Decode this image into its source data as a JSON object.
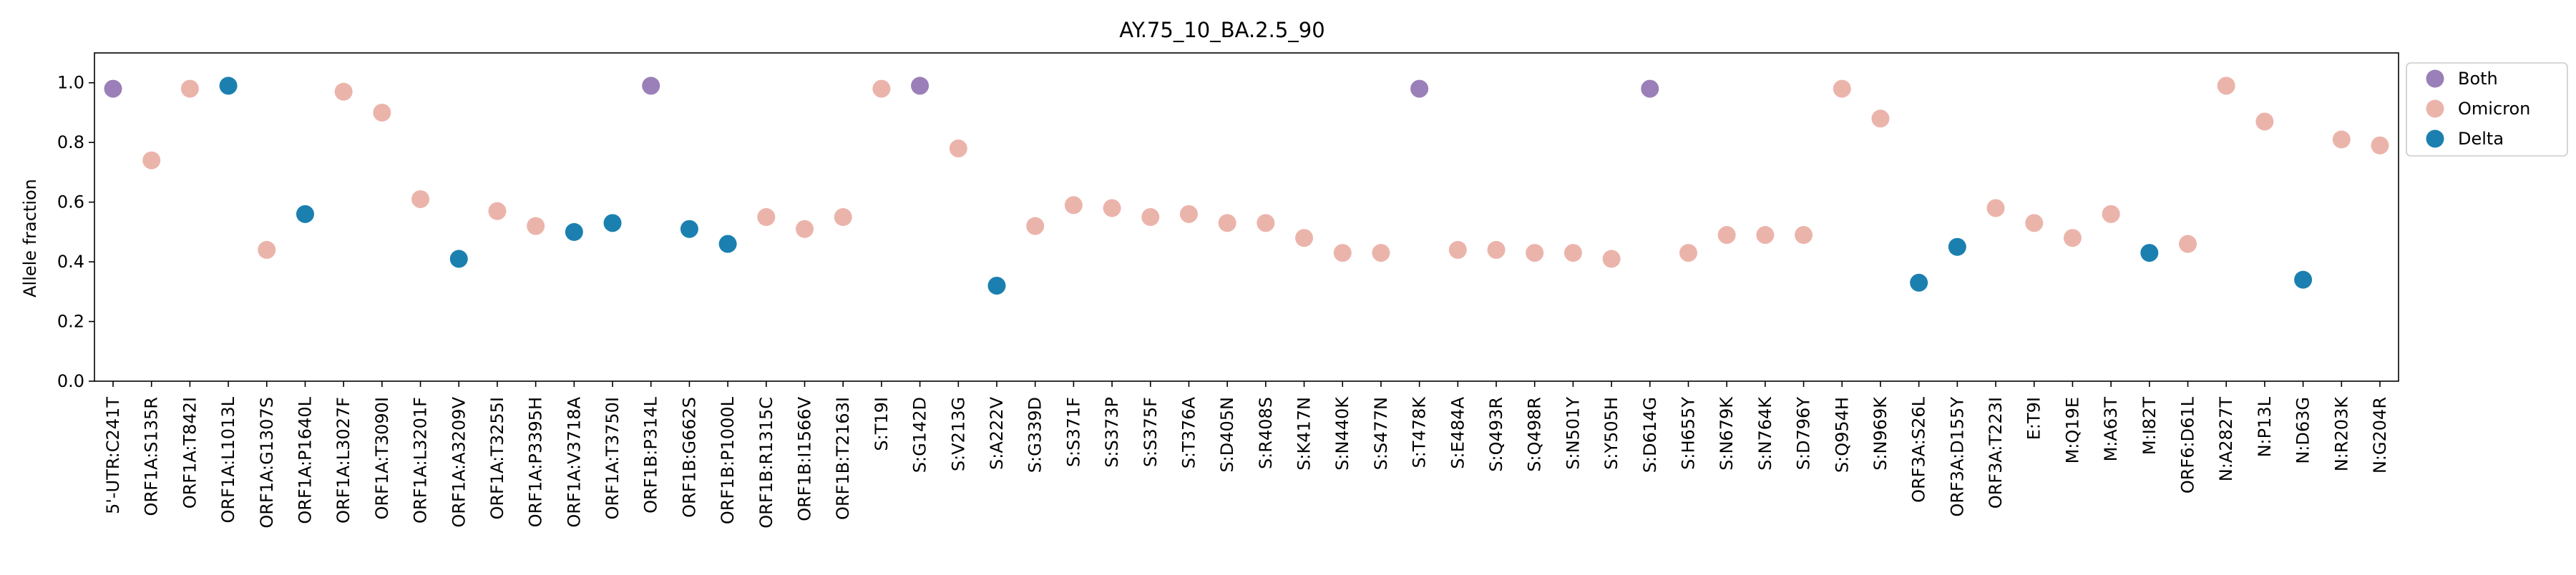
{
  "chart_data": {
    "type": "scatter",
    "title": "AY.75_10_BA.2.5_90",
    "xlabel": "",
    "ylabel": "Allele fraction",
    "ylim": [
      0,
      1.1
    ],
    "yticks": [
      "0.0",
      "0.2",
      "0.4",
      "0.6",
      "0.8",
      "1.0"
    ],
    "grid": false,
    "legend_position": "upper-right-outside",
    "colors": {
      "Both": "#9b7fb8",
      "Omicron": "#ebb4ab",
      "Delta": "#1b80b0"
    },
    "series": [
      {
        "name": "Both",
        "color": "#9b7fb8"
      },
      {
        "name": "Omicron",
        "color": "#ebb4ab"
      },
      {
        "name": "Delta",
        "color": "#1b80b0"
      }
    ],
    "points": [
      {
        "x": "5'-UTR:C241T",
        "y": 0.98,
        "group": "Both"
      },
      {
        "x": "ORF1A:S135R",
        "y": 0.74,
        "group": "Omicron"
      },
      {
        "x": "ORF1A:T842I",
        "y": 0.98,
        "group": "Omicron"
      },
      {
        "x": "ORF1A:L1013L",
        "y": 0.99,
        "group": "Delta"
      },
      {
        "x": "ORF1A:G1307S",
        "y": 0.44,
        "group": "Omicron"
      },
      {
        "x": "ORF1A:P1640L",
        "y": 0.56,
        "group": "Delta"
      },
      {
        "x": "ORF1A:L3027F",
        "y": 0.97,
        "group": "Omicron"
      },
      {
        "x": "ORF1A:T3090I",
        "y": 0.9,
        "group": "Omicron"
      },
      {
        "x": "ORF1A:L3201F",
        "y": 0.61,
        "group": "Omicron"
      },
      {
        "x": "ORF1A:A3209V",
        "y": 0.41,
        "group": "Delta"
      },
      {
        "x": "ORF1A:T3255I",
        "y": 0.57,
        "group": "Omicron"
      },
      {
        "x": "ORF1A:P3395H",
        "y": 0.52,
        "group": "Omicron"
      },
      {
        "x": "ORF1A:V3718A",
        "y": 0.5,
        "group": "Delta"
      },
      {
        "x": "ORF1A:T3750I",
        "y": 0.53,
        "group": "Delta"
      },
      {
        "x": "ORF1B:P314L",
        "y": 0.99,
        "group": "Both"
      },
      {
        "x": "ORF1B:G662S",
        "y": 0.51,
        "group": "Delta"
      },
      {
        "x": "ORF1B:P1000L",
        "y": 0.46,
        "group": "Delta"
      },
      {
        "x": "ORF1B:R1315C",
        "y": 0.55,
        "group": "Omicron"
      },
      {
        "x": "ORF1B:I1566V",
        "y": 0.51,
        "group": "Omicron"
      },
      {
        "x": "ORF1B:T2163I",
        "y": 0.55,
        "group": "Omicron"
      },
      {
        "x": "S:T19I",
        "y": 0.98,
        "group": "Omicron"
      },
      {
        "x": "S:G142D",
        "y": 0.99,
        "group": "Both"
      },
      {
        "x": "S:V213G",
        "y": 0.78,
        "group": "Omicron"
      },
      {
        "x": "S:A222V",
        "y": 0.32,
        "group": "Delta"
      },
      {
        "x": "S:G339D",
        "y": 0.52,
        "group": "Omicron"
      },
      {
        "x": "S:S371F",
        "y": 0.59,
        "group": "Omicron"
      },
      {
        "x": "S:S373P",
        "y": 0.58,
        "group": "Omicron"
      },
      {
        "x": "S:S375F",
        "y": 0.55,
        "group": "Omicron"
      },
      {
        "x": "S:T376A",
        "y": 0.56,
        "group": "Omicron"
      },
      {
        "x": "S:D405N",
        "y": 0.53,
        "group": "Omicron"
      },
      {
        "x": "S:R408S",
        "y": 0.53,
        "group": "Omicron"
      },
      {
        "x": "S:K417N",
        "y": 0.48,
        "group": "Omicron"
      },
      {
        "x": "S:N440K",
        "y": 0.43,
        "group": "Omicron"
      },
      {
        "x": "S:S477N",
        "y": 0.43,
        "group": "Omicron"
      },
      {
        "x": "S:T478K",
        "y": 0.98,
        "group": "Both"
      },
      {
        "x": "S:E484A",
        "y": 0.44,
        "group": "Omicron"
      },
      {
        "x": "S:Q493R",
        "y": 0.44,
        "group": "Omicron"
      },
      {
        "x": "S:Q498R",
        "y": 0.43,
        "group": "Omicron"
      },
      {
        "x": "S:N501Y",
        "y": 0.43,
        "group": "Omicron"
      },
      {
        "x": "S:Y505H",
        "y": 0.41,
        "group": "Omicron"
      },
      {
        "x": "S:D614G",
        "y": 0.98,
        "group": "Both"
      },
      {
        "x": "S:H655Y",
        "y": 0.43,
        "group": "Omicron"
      },
      {
        "x": "S:N679K",
        "y": 0.49,
        "group": "Omicron"
      },
      {
        "x": "S:N764K",
        "y": 0.49,
        "group": "Omicron"
      },
      {
        "x": "S:D796Y",
        "y": 0.49,
        "group": "Omicron"
      },
      {
        "x": "S:Q954H",
        "y": 0.98,
        "group": "Omicron"
      },
      {
        "x": "S:N969K",
        "y": 0.88,
        "group": "Omicron"
      },
      {
        "x": "ORF3A:S26L",
        "y": 0.33,
        "group": "Delta"
      },
      {
        "x": "ORF3A:D155Y",
        "y": 0.45,
        "group": "Delta"
      },
      {
        "x": "ORF3A:T223I",
        "y": 0.58,
        "group": "Omicron"
      },
      {
        "x": "E:T9I",
        "y": 0.53,
        "group": "Omicron"
      },
      {
        "x": "M:Q19E",
        "y": 0.48,
        "group": "Omicron"
      },
      {
        "x": "M:A63T",
        "y": 0.56,
        "group": "Omicron"
      },
      {
        "x": "M:I82T",
        "y": 0.43,
        "group": "Delta"
      },
      {
        "x": "ORF6:D61L",
        "y": 0.46,
        "group": "Omicron"
      },
      {
        "x": "N:A2827T",
        "y": 0.99,
        "group": "Omicron"
      },
      {
        "x": "N:P13L",
        "y": 0.87,
        "group": "Omicron"
      },
      {
        "x": "N:D63G",
        "y": 0.34,
        "group": "Delta"
      },
      {
        "x": "N:R203K",
        "y": 0.81,
        "group": "Omicron"
      },
      {
        "x": "N:G204R",
        "y": 0.79,
        "group": "Omicron"
      }
    ]
  }
}
